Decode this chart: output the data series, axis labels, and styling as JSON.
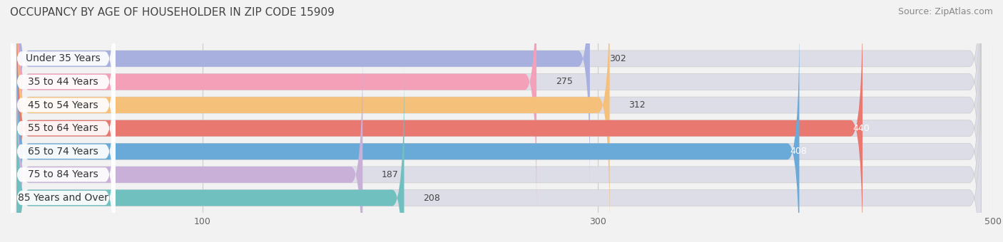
{
  "title": "OCCUPANCY BY AGE OF HOUSEHOLDER IN ZIP CODE 15909",
  "source": "Source: ZipAtlas.com",
  "categories": [
    "Under 35 Years",
    "35 to 44 Years",
    "45 to 54 Years",
    "55 to 64 Years",
    "65 to 74 Years",
    "75 to 84 Years",
    "85 Years and Over"
  ],
  "values": [
    302,
    275,
    312,
    440,
    408,
    187,
    208
  ],
  "bar_colors": [
    "#a8b0e0",
    "#f4a0b8",
    "#f5c07a",
    "#e87870",
    "#6aaad8",
    "#c8b0d8",
    "#70c0c0"
  ],
  "bar_bg_color": "#dddde8",
  "xlim": [
    0,
    500
  ],
  "xticks": [
    100,
    300,
    500
  ],
  "title_fontsize": 11,
  "source_fontsize": 9,
  "label_fontsize": 10,
  "value_fontsize": 9,
  "bar_height": 0.7,
  "background_color": "#f2f2f2"
}
